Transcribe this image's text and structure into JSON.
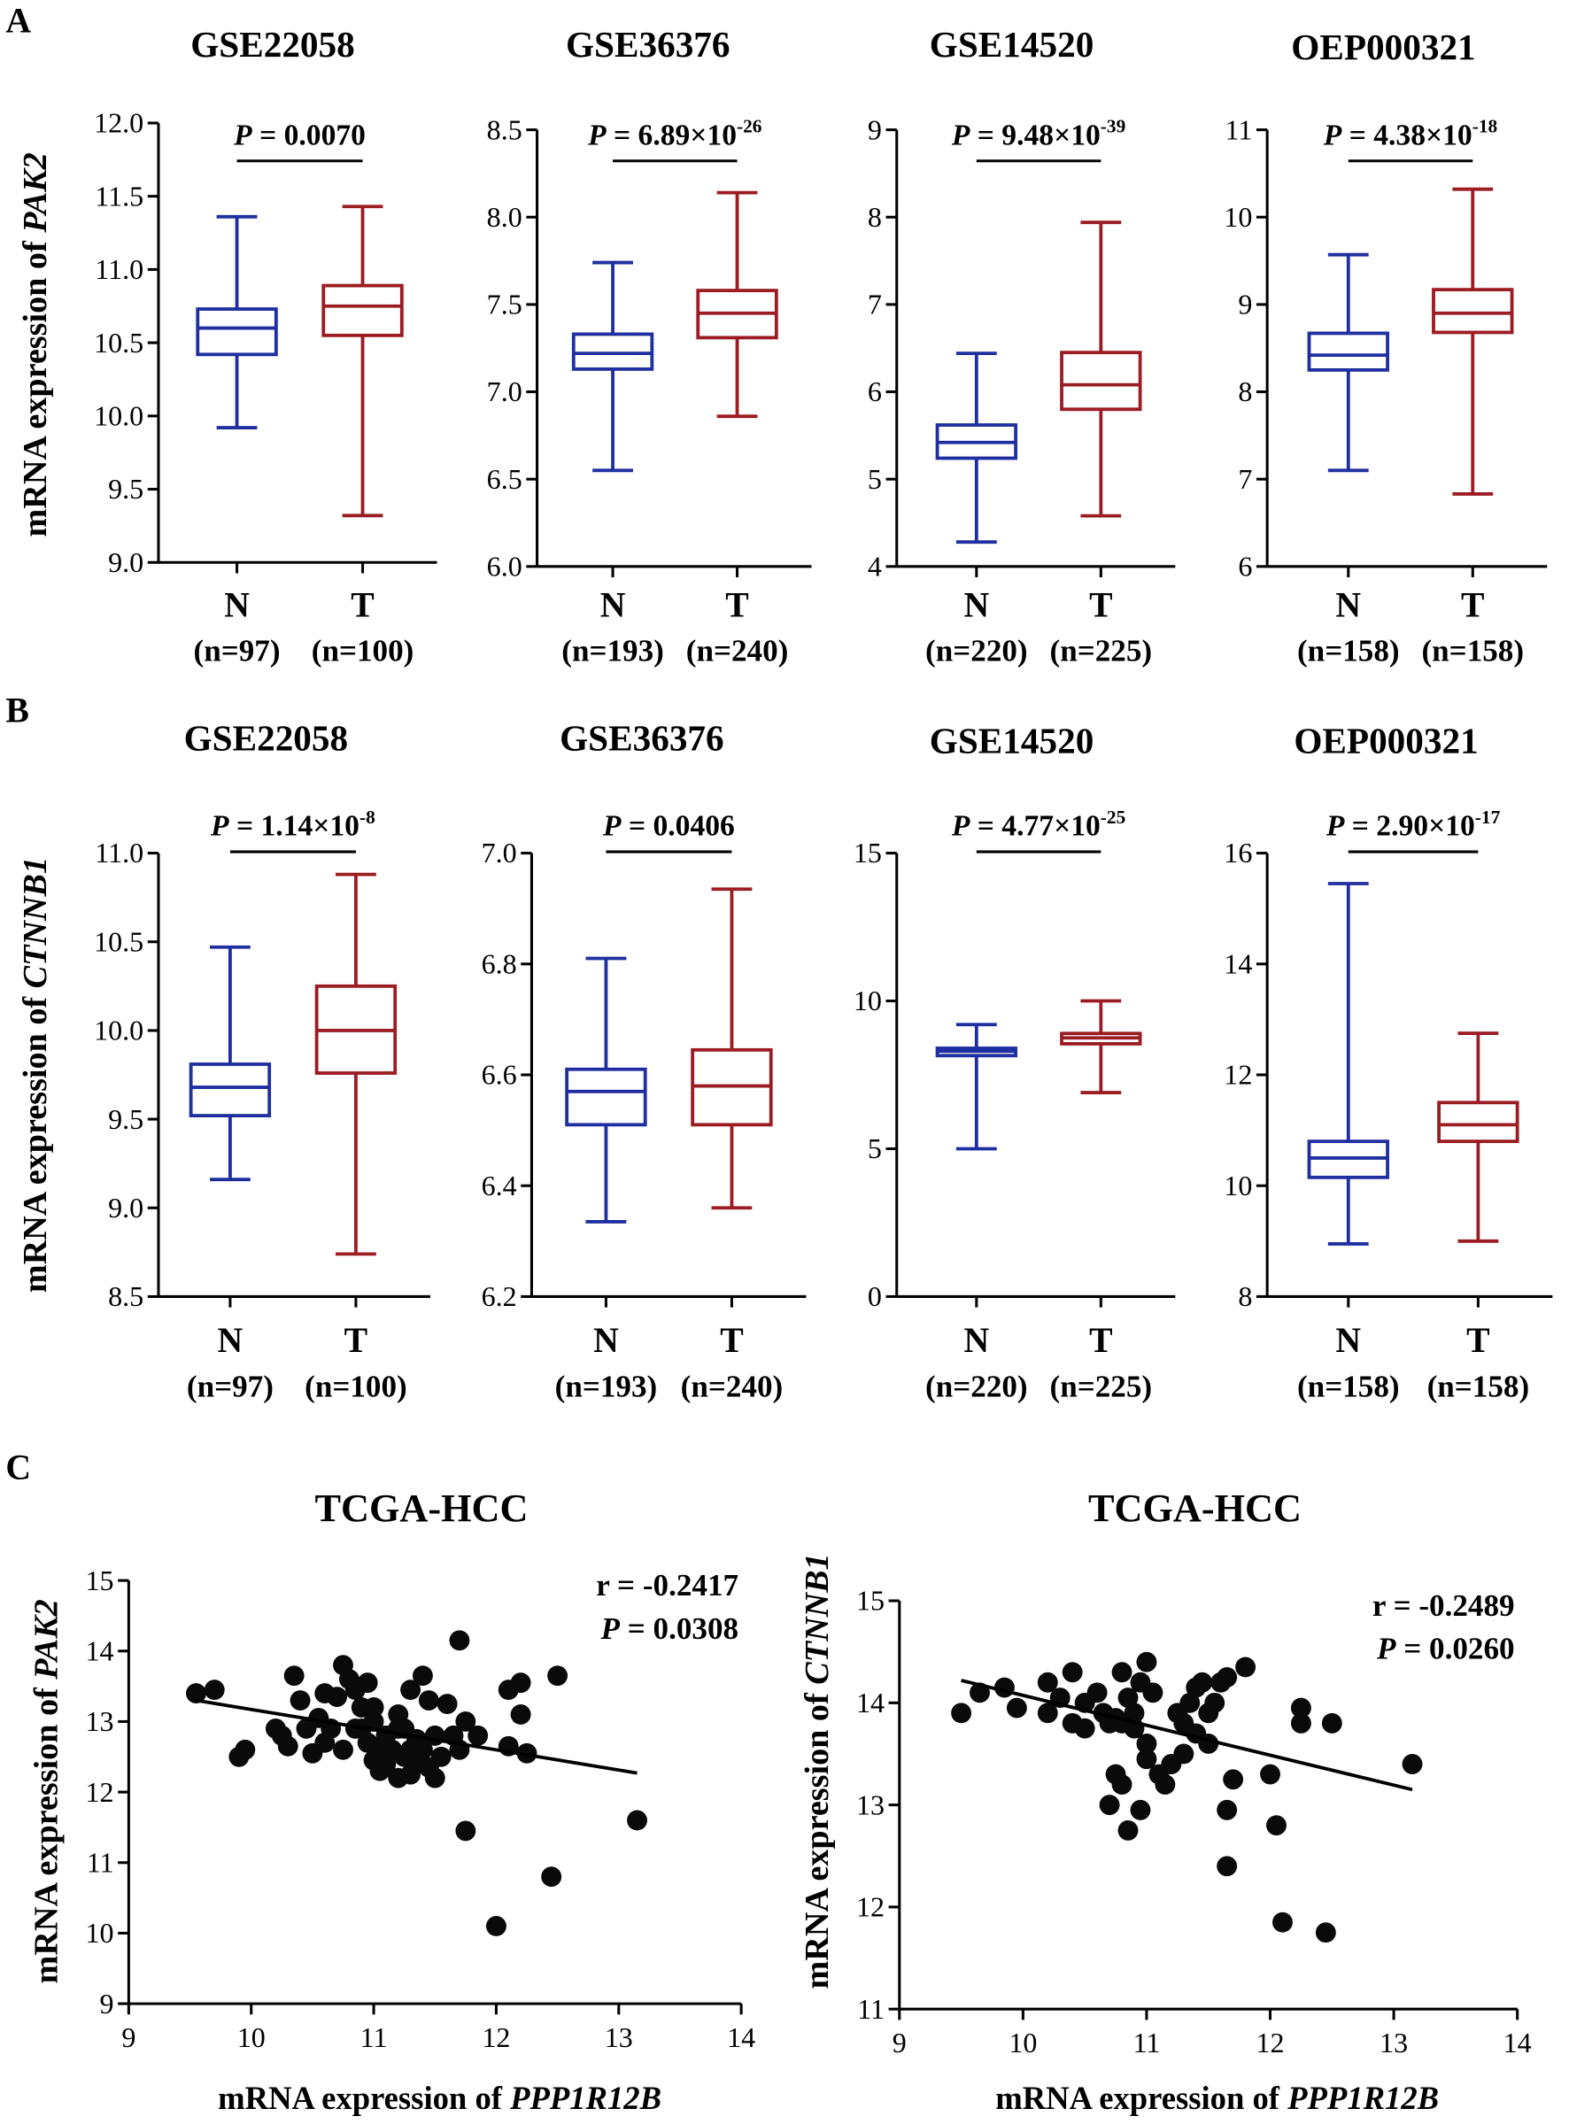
{
  "colors": {
    "normal": "#1f2fa0",
    "tumor": "#9b1c22",
    "axis": "#000000"
  },
  "panels": [
    {
      "letter": "A",
      "ylabel_prefix": "mRNA expression of ",
      "ylabel_gene": "PAK2"
    },
    {
      "letter": "B",
      "ylabel_prefix": "mRNA expression of ",
      "ylabel_gene": "CTNNB1"
    },
    {
      "letter": "C"
    }
  ],
  "chart_data": [
    {
      "type": "box",
      "panel": "A",
      "title": "GSE22058",
      "ylim": [
        9,
        12
      ],
      "yticks": [
        "9.0",
        "9.5",
        "10.0",
        "10.5",
        "11.0",
        "11.5",
        "12.0"
      ],
      "p_base": "= 0.0070",
      "p_exp": "",
      "groups": [
        {
          "name": "N",
          "n": "(n=97)",
          "min": 9.92,
          "q1": 10.42,
          "median": 10.6,
          "q3": 10.73,
          "max": 11.36
        },
        {
          "name": "T",
          "n": "(n=100)",
          "min": 9.32,
          "q1": 10.55,
          "median": 10.75,
          "q3": 10.89,
          "max": 11.43
        }
      ]
    },
    {
      "type": "box",
      "panel": "A",
      "title": "GSE36376",
      "ylim": [
        6,
        8.5
      ],
      "yticks": [
        "6.0",
        "6.5",
        "7.0",
        "7.5",
        "8.0",
        "8.5"
      ],
      "p_base": "= 6.89×10",
      "p_exp": "-26",
      "groups": [
        {
          "name": "N",
          "n": "(n=193)",
          "min": 6.55,
          "q1": 7.13,
          "median": 7.22,
          "q3": 7.33,
          "max": 7.74
        },
        {
          "name": "T",
          "n": "(n=240)",
          "min": 6.86,
          "q1": 7.31,
          "median": 7.45,
          "q3": 7.58,
          "max": 8.14
        }
      ]
    },
    {
      "type": "box",
      "panel": "A",
      "title": "GSE14520",
      "ylim": [
        4,
        9
      ],
      "yticks": [
        "4",
        "5",
        "6",
        "7",
        "8",
        "9"
      ],
      "p_base": "= 9.48×10",
      "p_exp": "-39",
      "groups": [
        {
          "name": "N",
          "n": "(n=220)",
          "min": 4.28,
          "q1": 5.24,
          "median": 5.42,
          "q3": 5.62,
          "max": 6.44
        },
        {
          "name": "T",
          "n": "(n=225)",
          "min": 4.58,
          "q1": 5.8,
          "median": 6.08,
          "q3": 6.45,
          "max": 7.94
        }
      ]
    },
    {
      "type": "box",
      "panel": "A",
      "title": "OEP000321",
      "ylim": [
        6,
        11
      ],
      "yticks": [
        "6",
        "7",
        "8",
        "9",
        "10",
        "11"
      ],
      "p_base": "= 4.38×10",
      "p_exp": "-18",
      "groups": [
        {
          "name": "N",
          "n": "(n=158)",
          "min": 7.1,
          "q1": 8.25,
          "median": 8.42,
          "q3": 8.67,
          "max": 9.57
        },
        {
          "name": "T",
          "n": "(n=158)",
          "min": 6.83,
          "q1": 8.68,
          "median": 8.9,
          "q3": 9.17,
          "max": 10.32
        }
      ]
    },
    {
      "type": "box",
      "panel": "B",
      "title": "GSE22058",
      "ylim": [
        8.5,
        11
      ],
      "yticks": [
        "8.5",
        "9.0",
        "9.5",
        "10.0",
        "10.5",
        "11.0"
      ],
      "p_base": "= 1.14×10",
      "p_exp": "-8",
      "groups": [
        {
          "name": "N",
          "n": "(n=97)",
          "min": 9.16,
          "q1": 9.52,
          "median": 9.68,
          "q3": 9.81,
          "max": 10.47
        },
        {
          "name": "T",
          "n": "(n=100)",
          "min": 8.74,
          "q1": 9.76,
          "median": 10.0,
          "q3": 10.25,
          "max": 10.88
        }
      ]
    },
    {
      "type": "box",
      "panel": "B",
      "title": "GSE36376",
      "ylim": [
        6.2,
        7.0
      ],
      "yticks": [
        "6.2",
        "6.4",
        "6.6",
        "6.8",
        "7.0"
      ],
      "p_base": "= 0.0406",
      "p_exp": "",
      "groups": [
        {
          "name": "N",
          "n": "(n=193)",
          "min": 6.335,
          "q1": 6.51,
          "median": 6.57,
          "q3": 6.61,
          "max": 6.81
        },
        {
          "name": "T",
          "n": "(n=240)",
          "min": 6.36,
          "q1": 6.51,
          "median": 6.58,
          "q3": 6.645,
          "max": 6.935
        }
      ]
    },
    {
      "type": "box",
      "panel": "B",
      "title": "GSE14520",
      "ylim": [
        0,
        15
      ],
      "yticks": [
        "0",
        "5",
        "10",
        "15"
      ],
      "p_base": "= 4.77×10",
      "p_exp": "-25",
      "groups": [
        {
          "name": "N",
          "n": "(n=220)",
          "min": 5.0,
          "q1": 8.15,
          "median": 8.3,
          "q3": 8.4,
          "max": 9.2
        },
        {
          "name": "T",
          "n": "(n=225)",
          "min": 6.9,
          "q1": 8.55,
          "median": 8.75,
          "q3": 8.9,
          "max": 10.0
        }
      ]
    },
    {
      "type": "box",
      "panel": "B",
      "title": "OEP000321",
      "ylim": [
        8,
        16
      ],
      "yticks": [
        "8",
        "10",
        "12",
        "14",
        "16"
      ],
      "p_base": "= 2.90×10",
      "p_exp": "-17",
      "groups": [
        {
          "name": "N",
          "n": "(n=158)",
          "min": 8.95,
          "q1": 10.15,
          "median": 10.5,
          "q3": 10.8,
          "max": 15.45
        },
        {
          "name": "T",
          "n": "(n=158)",
          "min": 9.0,
          "q1": 10.8,
          "median": 11.1,
          "q3": 11.5,
          "max": 12.75
        }
      ]
    },
    {
      "type": "scatter",
      "panel": "C",
      "title": "TCGA-HCC",
      "xlabel_prefix": "mRNA expression of ",
      "xlabel_gene": "PPP1R12B",
      "ylabel_prefix": "mRNA expression of ",
      "ylabel_gene": "PAK2",
      "xlim": [
        9,
        14
      ],
      "ylim": [
        9,
        15
      ],
      "xticks": [
        "9",
        "10",
        "11",
        "12",
        "13",
        "14"
      ],
      "yticks": [
        "9",
        "10",
        "11",
        "12",
        "13",
        "14",
        "15"
      ],
      "r_label": "r = -0.2417",
      "p_label": "=  0.0308",
      "fit": [
        [
          9.55,
          13.3
        ],
        [
          13.15,
          12.27
        ]
      ],
      "points": [
        [
          9.55,
          13.4
        ],
        [
          9.7,
          13.45
        ],
        [
          9.9,
          12.5
        ],
        [
          9.95,
          12.6
        ],
        [
          10.2,
          12.9
        ],
        [
          10.25,
          12.8
        ],
        [
          10.3,
          12.65
        ],
        [
          10.35,
          13.65
        ],
        [
          10.4,
          13.3
        ],
        [
          10.45,
          12.9
        ],
        [
          10.5,
          12.55
        ],
        [
          10.55,
          13.05
        ],
        [
          10.6,
          12.7
        ],
        [
          10.6,
          13.4
        ],
        [
          10.65,
          12.9
        ],
        [
          10.7,
          13.35
        ],
        [
          10.75,
          12.6
        ],
        [
          10.75,
          13.8
        ],
        [
          10.8,
          13.6
        ],
        [
          10.85,
          13.45
        ],
        [
          10.9,
          13.2
        ],
        [
          10.9,
          12.9
        ],
        [
          10.95,
          12.7
        ],
        [
          11.0,
          13.0
        ],
        [
          11.0,
          12.45
        ],
        [
          11.05,
          12.3
        ],
        [
          11.1,
          12.8
        ],
        [
          11.15,
          12.6
        ],
        [
          11.2,
          12.9
        ],
        [
          11.25,
          12.5
        ],
        [
          11.3,
          12.25
        ],
        [
          11.35,
          12.75
        ],
        [
          11.4,
          12.6
        ],
        [
          11.45,
          12.35
        ],
        [
          11.5,
          12.8
        ],
        [
          11.55,
          12.5
        ],
        [
          11.3,
          13.45
        ],
        [
          11.4,
          13.65
        ],
        [
          11.45,
          13.3
        ],
        [
          11.6,
          13.25
        ],
        [
          11.65,
          12.8
        ],
        [
          11.7,
          12.6
        ],
        [
          11.75,
          13.0
        ],
        [
          11.85,
          12.8
        ],
        [
          11.7,
          14.15
        ],
        [
          11.75,
          11.45
        ],
        [
          12.0,
          10.1
        ],
        [
          12.1,
          12.65
        ],
        [
          12.1,
          13.45
        ],
        [
          12.2,
          13.55
        ],
        [
          12.2,
          13.1
        ],
        [
          12.25,
          12.55
        ],
        [
          12.45,
          10.8
        ],
        [
          12.5,
          13.65
        ],
        [
          13.15,
          11.6
        ],
        [
          11.0,
          13.2
        ],
        [
          10.95,
          13.55
        ],
        [
          11.2,
          13.1
        ],
        [
          11.1,
          12.4
        ],
        [
          11.35,
          12.4
        ],
        [
          11.5,
          12.2
        ],
        [
          11.2,
          12.2
        ],
        [
          10.85,
          12.9
        ],
        [
          11.05,
          12.6
        ],
        [
          11.25,
          12.9
        ],
        [
          11.3,
          12.6
        ]
      ]
    },
    {
      "type": "scatter",
      "panel": "C",
      "title": "TCGA-HCC",
      "xlabel_prefix": "mRNA expression of ",
      "xlabel_gene": "PPP1R12B",
      "ylabel_prefix": "mRNA expression of ",
      "ylabel_gene": "CTNNB1",
      "xlim": [
        9,
        14
      ],
      "ylim": [
        11,
        15
      ],
      "xticks": [
        "9",
        "10",
        "11",
        "12",
        "13",
        "14"
      ],
      "yticks": [
        "11",
        "12",
        "13",
        "14",
        "15"
      ],
      "r_label": "r = -0.2489",
      "p_label": "=  0.0260",
      "fit": [
        [
          9.5,
          14.22
        ],
        [
          13.15,
          13.15
        ]
      ],
      "points": [
        [
          9.5,
          13.9
        ],
        [
          9.65,
          14.1
        ],
        [
          9.85,
          14.15
        ],
        [
          9.95,
          13.95
        ],
        [
          10.2,
          13.9
        ],
        [
          10.2,
          14.2
        ],
        [
          10.3,
          14.05
        ],
        [
          10.4,
          13.8
        ],
        [
          10.4,
          14.3
        ],
        [
          10.5,
          13.75
        ],
        [
          10.5,
          14.0
        ],
        [
          10.6,
          14.1
        ],
        [
          10.65,
          13.9
        ],
        [
          10.7,
          13.8
        ],
        [
          10.75,
          13.85
        ],
        [
          10.8,
          14.3
        ],
        [
          10.85,
          14.05
        ],
        [
          10.9,
          13.9
        ],
        [
          10.95,
          14.2
        ],
        [
          11.0,
          14.4
        ],
        [
          11.05,
          14.1
        ],
        [
          10.8,
          13.8
        ],
        [
          10.9,
          13.75
        ],
        [
          11.0,
          13.6
        ],
        [
          11.0,
          13.45
        ],
        [
          11.1,
          13.3
        ],
        [
          10.75,
          13.3
        ],
        [
          10.8,
          13.2
        ],
        [
          10.7,
          13.0
        ],
        [
          10.85,
          12.75
        ],
        [
          10.95,
          12.95
        ],
        [
          11.15,
          13.2
        ],
        [
          11.2,
          13.4
        ],
        [
          11.3,
          13.8
        ],
        [
          11.35,
          14.0
        ],
        [
          11.4,
          14.15
        ],
        [
          11.45,
          14.2
        ],
        [
          11.5,
          13.9
        ],
        [
          11.55,
          14.0
        ],
        [
          11.6,
          14.2
        ],
        [
          11.65,
          14.25
        ],
        [
          11.8,
          14.35
        ],
        [
          11.4,
          13.7
        ],
        [
          11.5,
          13.6
        ],
        [
          11.7,
          13.25
        ],
        [
          11.65,
          12.95
        ],
        [
          11.65,
          12.4
        ],
        [
          12.0,
          13.3
        ],
        [
          12.05,
          12.8
        ],
        [
          12.1,
          11.85
        ],
        [
          12.25,
          13.8
        ],
        [
          12.25,
          13.95
        ],
        [
          12.45,
          11.75
        ],
        [
          12.5,
          13.8
        ],
        [
          13.15,
          13.4
        ],
        [
          11.3,
          13.5
        ],
        [
          11.25,
          13.9
        ]
      ]
    }
  ]
}
